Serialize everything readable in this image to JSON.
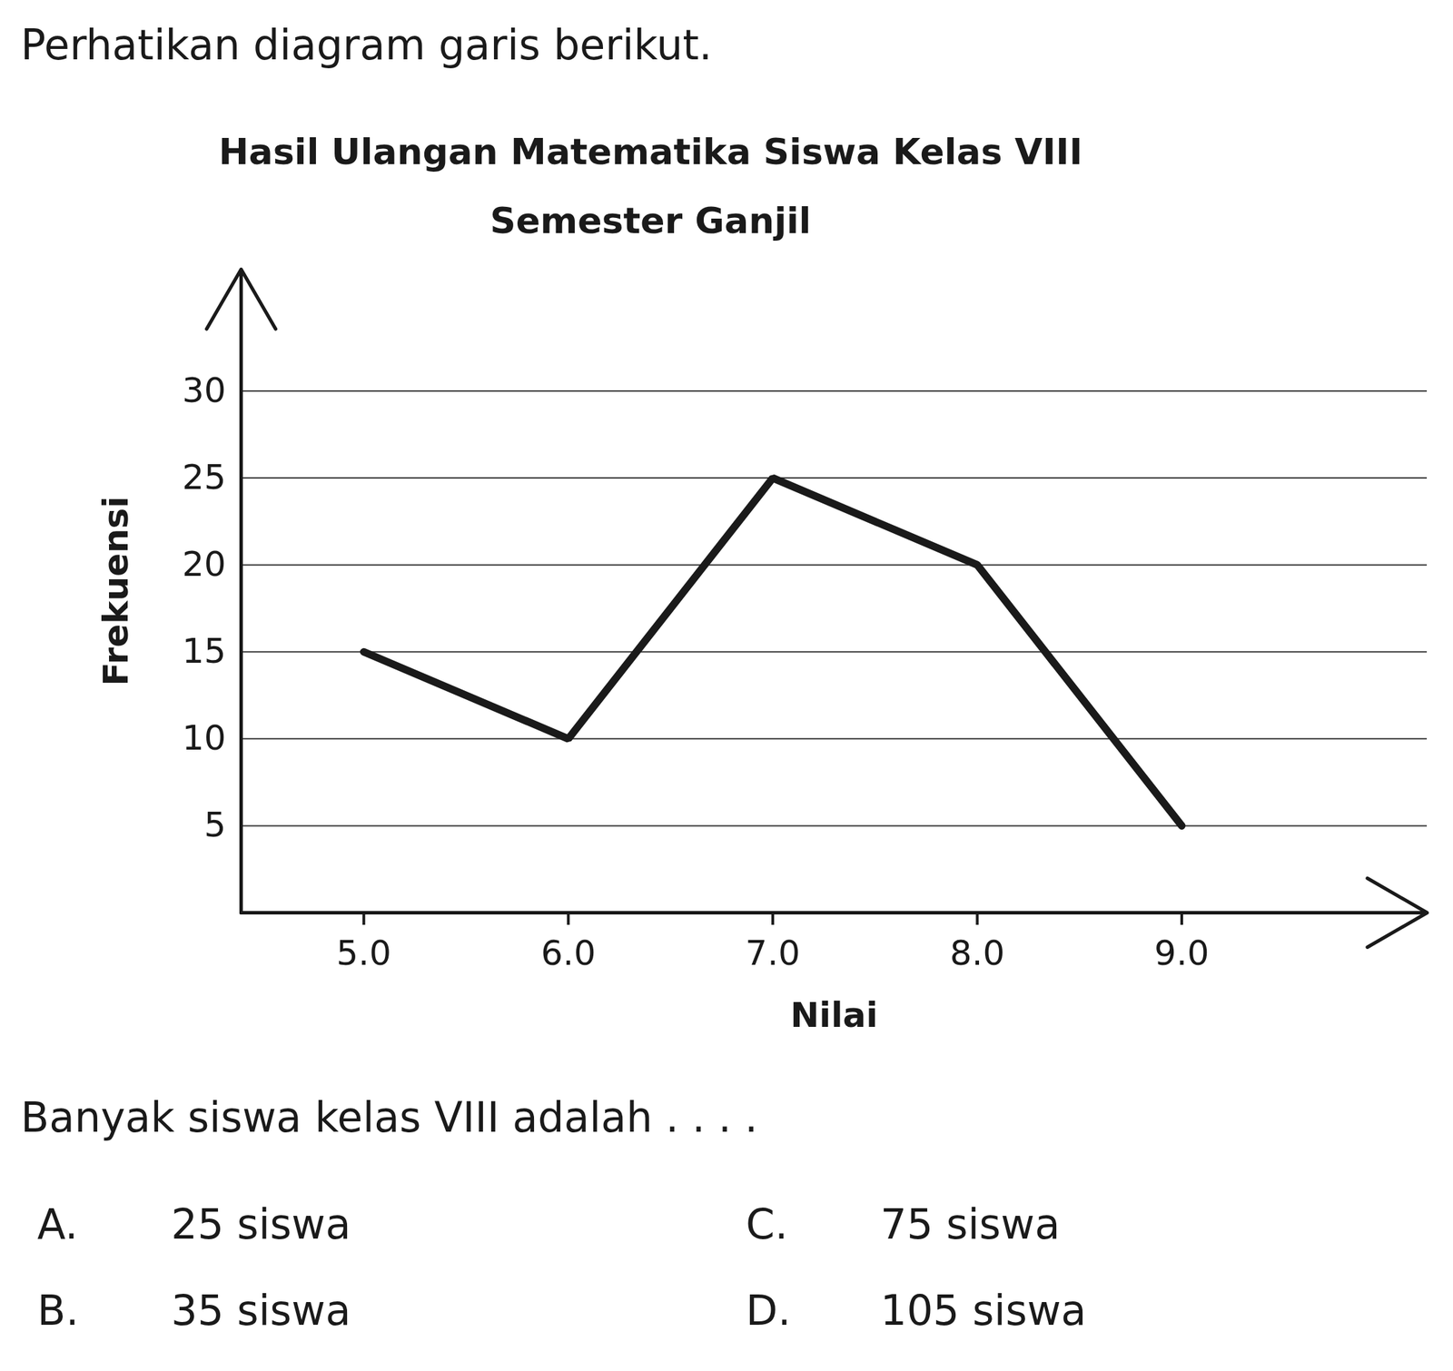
{
  "header": {
    "text": "Perhatikan diagram garis berikut."
  },
  "chart_data": {
    "type": "line",
    "title": "Hasil Ulangan Matematika Siswa Kelas VIII",
    "subtitle": "Semester Ganjil",
    "x_label": "Nilai",
    "y_label": "Frekuensi",
    "x": [
      5,
      6,
      7,
      8,
      9
    ],
    "values": [
      15,
      10,
      25,
      20,
      5
    ],
    "color": "#1a1a1a",
    "xlim": [
      4.4,
      10.2
    ],
    "xticks": [
      5,
      6,
      7,
      8,
      9
    ],
    "ylim": [
      0,
      37
    ],
    "yticks": [
      5,
      10,
      15,
      20,
      25,
      30
    ],
    "grid": "y"
  },
  "question": {
    "text": "Banyak siswa kelas VIII adalah . . . .",
    "options": [
      {
        "label": "A.",
        "text": "25 siswa"
      },
      {
        "label": "B.",
        "text": "35 siswa"
      },
      {
        "label": "C.",
        "text": "75 siswa"
      },
      {
        "label": "D.",
        "text": "105 siswa"
      }
    ]
  }
}
